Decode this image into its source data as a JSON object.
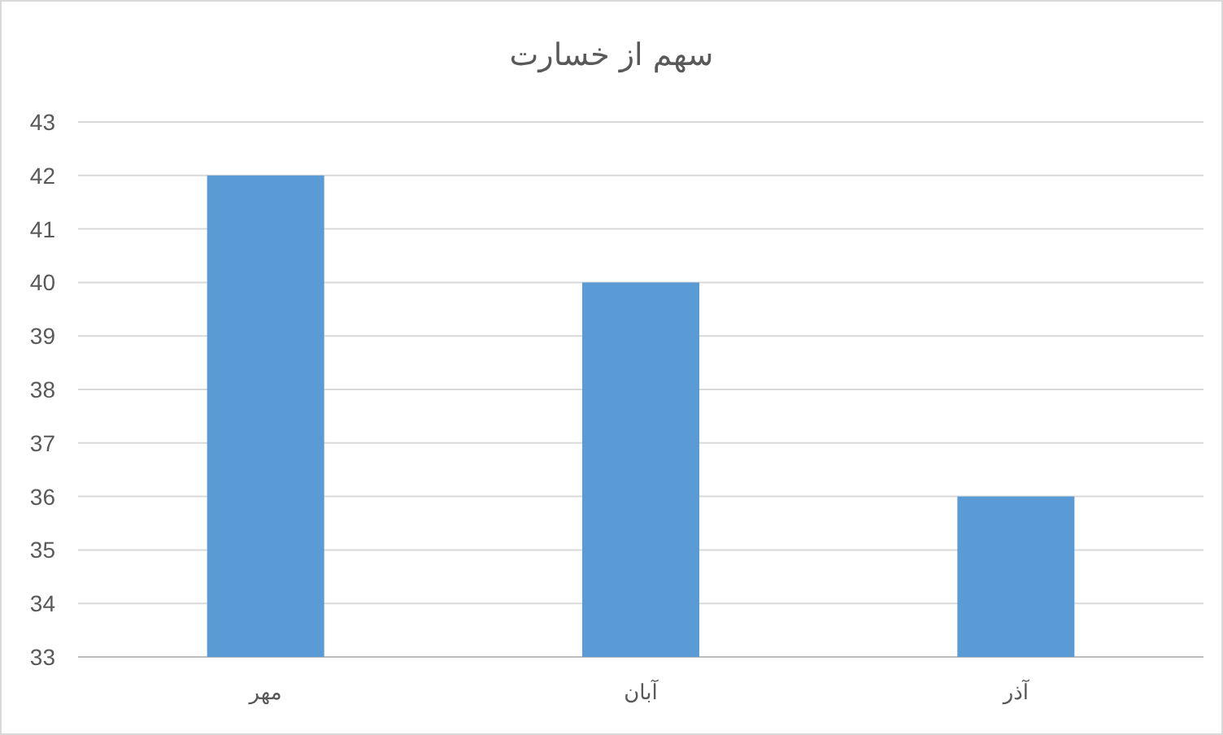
{
  "chart_data": {
    "type": "bar",
    "title": "سهم از خسارت",
    "categories": [
      "مهر",
      "آبان",
      "آذر"
    ],
    "values": [
      42,
      40,
      36
    ],
    "color": "#5b9bd5",
    "ylim": [
      33,
      43
    ],
    "yticks": [
      33,
      34,
      35,
      36,
      37,
      38,
      39,
      40,
      41,
      42,
      43
    ],
    "grid": "y"
  }
}
